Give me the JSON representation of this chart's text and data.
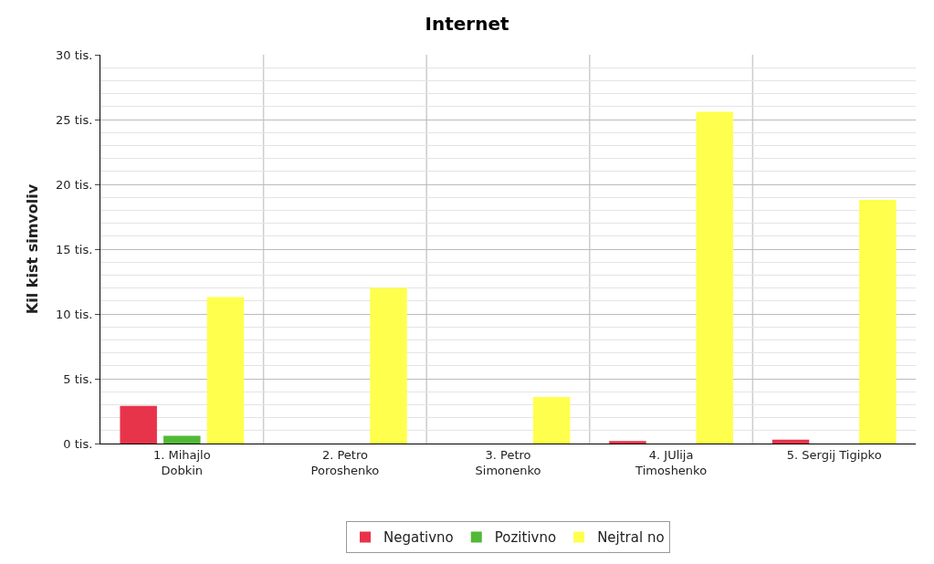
{
  "chart_data": {
    "type": "bar",
    "title": "Internet",
    "ylabel": "Kil kist simvoliv",
    "categories": [
      "1. Mihajlo\nDobkin",
      "2. Petro\nPoroshenko",
      "3. Petro\nSimonenko",
      "4. JUlija\nTimoshenko",
      "5. Sergij Tigipko"
    ],
    "series": [
      {
        "name": "Negativno",
        "color": "#e8344a",
        "values": [
          2.9,
          0,
          0,
          0.2,
          0.3
        ]
      },
      {
        "name": "Pozitivno",
        "color": "#52b936",
        "values": [
          0.6,
          0,
          0,
          0,
          0
        ]
      },
      {
        "name": "Nejtral no",
        "color": "#ffff4d",
        "values": [
          11.3,
          12.0,
          3.6,
          25.6,
          18.8
        ]
      }
    ],
    "ylim": [
      0,
      30
    ],
    "yticks": [
      {
        "value": 0,
        "label": "0 tis."
      },
      {
        "value": 5,
        "label": "5 tis."
      },
      {
        "value": 10,
        "label": "10 tis."
      },
      {
        "value": 15,
        "label": "15 tis."
      },
      {
        "value": 20,
        "label": "20 tis."
      },
      {
        "value": 25,
        "label": "25 tis."
      },
      {
        "value": 30,
        "label": "30 tis."
      }
    ],
    "grid": true,
    "legend": "bottom"
  }
}
